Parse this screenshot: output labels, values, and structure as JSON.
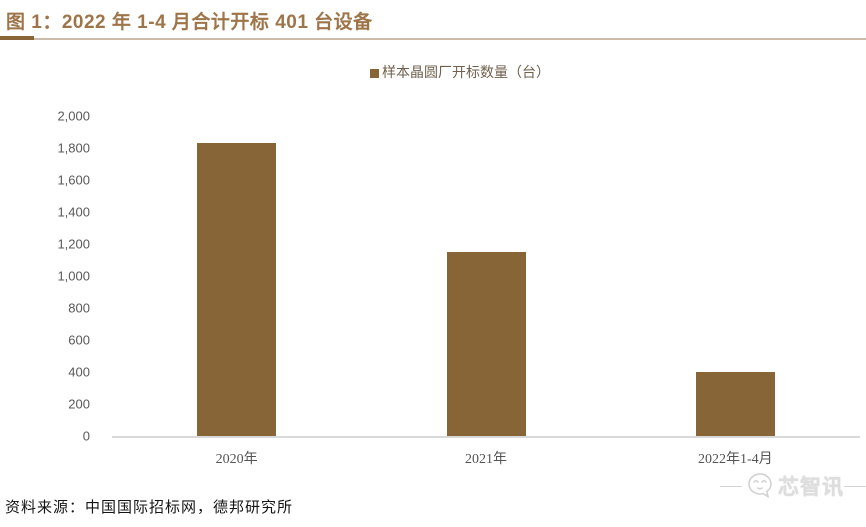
{
  "header": {
    "title": "图 1：2022 年 1-4 月合计开标 401 台设备"
  },
  "chart_data": {
    "type": "bar",
    "title": "2022 年 1-4 月合计开标 401 台设备",
    "legend": "样本晶圆厂开标数量（台）",
    "legend_position": "top-center",
    "categories": [
      "2020年",
      "2021年",
      "2022年1-4月"
    ],
    "values": [
      1830,
      1150,
      401
    ],
    "xlabel": "",
    "ylabel": "",
    "ylim": [
      0,
      2000
    ],
    "ytick_step": 200,
    "yticks": [
      "2,000",
      "1,800",
      "1,600",
      "1,400",
      "1,200",
      "1,000",
      "800",
      "600",
      "400",
      "200",
      "0"
    ],
    "grid": false,
    "bar_color": "#876537"
  },
  "footer": {
    "source": "资料来源：中国国际招标网，德邦研究所"
  },
  "watermark": {
    "text": "芯智讯",
    "icon": "chat-face-logo-icon"
  },
  "colors": {
    "title_text": "#9e7449",
    "bar": "#876537",
    "divider_accent": "#8a6538",
    "divider_line": "#cbbcab",
    "axis_line": "#d9d9d9",
    "tick_text": "#595959"
  }
}
